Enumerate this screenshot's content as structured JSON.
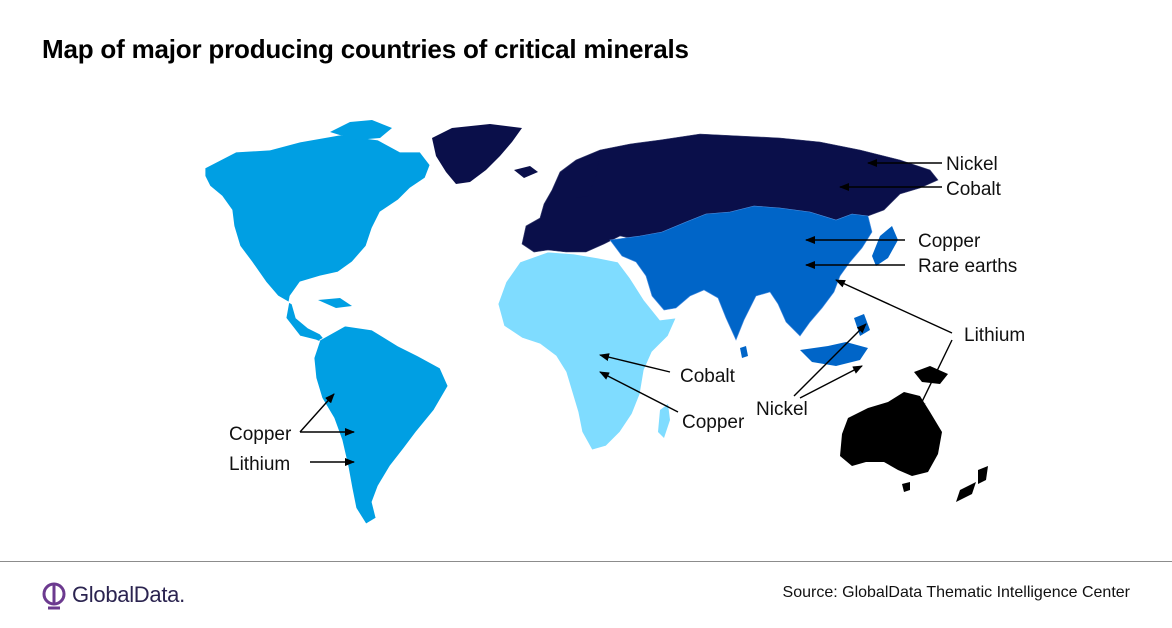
{
  "title": "Map of major producing countries of critical minerals",
  "legend_colors": {
    "americas": "#009fe3",
    "africa": "#7fdcff",
    "asia": "#0065c8",
    "russia_europe": "#0a0f4a",
    "australia": "#000000",
    "background": "#ffffff"
  },
  "regions": [
    {
      "name": "North America",
      "color_key": "americas"
    },
    {
      "name": "South America",
      "color_key": "americas"
    },
    {
      "name": "Africa",
      "color_key": "africa"
    },
    {
      "name": "Asia",
      "color_key": "asia"
    },
    {
      "name": "Russia & Europe",
      "color_key": "russia_europe"
    },
    {
      "name": "Australia",
      "color_key": "australia"
    }
  ],
  "labels": {
    "russia_nickel": "Nickel",
    "russia_cobalt": "Cobalt",
    "china_copper": "Copper",
    "china_rare_earths": "Rare earths",
    "australia_lithium": "Lithium",
    "africa_cobalt": "Cobalt",
    "africa_copper": "Copper",
    "indonesia_nickel": "Nickel",
    "sa_copper": "Copper",
    "sa_lithium": "Lithium"
  },
  "footer": {
    "logo_text": "GlobalData.",
    "logo_icon": "globaldata-logo-icon",
    "source": "Source: GlobalData Thematic Intelligence Center"
  }
}
